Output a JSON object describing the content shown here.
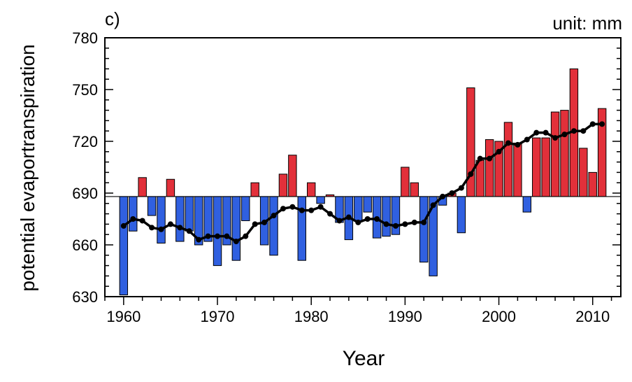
{
  "panel_label": "c)",
  "unit_label": "unit: mm",
  "colors": {
    "positive": "#e2303a",
    "negative": "#3060e0",
    "line": "#000000",
    "axis": "#000000"
  },
  "chart_data": {
    "type": "bar",
    "title": "",
    "xlabel": "Year",
    "ylabel": "potential evaportranspiration",
    "baseline": 688,
    "ylim": [
      630,
      780
    ],
    "xlim": [
      1958,
      2013
    ],
    "yticks": [
      630,
      660,
      690,
      720,
      750,
      780
    ],
    "xticks": [
      1960,
      1970,
      1980,
      1990,
      2000,
      2010
    ],
    "x": [
      1960,
      1961,
      1962,
      1963,
      1964,
      1965,
      1966,
      1967,
      1968,
      1969,
      1970,
      1971,
      1972,
      1973,
      1974,
      1975,
      1976,
      1977,
      1978,
      1979,
      1980,
      1981,
      1982,
      1983,
      1984,
      1985,
      1986,
      1987,
      1988,
      1989,
      1990,
      1991,
      1992,
      1993,
      1994,
      1995,
      1996,
      1997,
      1998,
      1999,
      2000,
      2001,
      2002,
      2003,
      2004,
      2005,
      2006,
      2007,
      2008,
      2009,
      2010,
      2011
    ],
    "series": [
      {
        "type": "bar",
        "values": [
          631,
          668,
          699,
          677,
          661,
          698,
          662,
          668,
          660,
          662,
          648,
          660,
          651,
          674,
          696,
          660,
          654,
          701,
          712,
          651,
          696,
          684,
          689,
          673,
          663,
          674,
          679,
          664,
          665,
          666,
          705,
          696,
          650,
          642,
          683,
          690,
          667,
          751,
          709,
          721,
          720,
          731,
          719,
          679,
          722,
          722,
          737,
          738,
          762,
          716,
          702,
          739
        ]
      },
      {
        "type": "line",
        "values": [
          671,
          675,
          674,
          670,
          669,
          672,
          670,
          668,
          663,
          665,
          665,
          665,
          662,
          665,
          672,
          673,
          677,
          681,
          682,
          680,
          680,
          682,
          678,
          674,
          676,
          673,
          675,
          675,
          672,
          671,
          672,
          673,
          673,
          683,
          688,
          690,
          693,
          701,
          710,
          710,
          714,
          719,
          718,
          721,
          725,
          725,
          722,
          724,
          726,
          726,
          730,
          730
        ]
      }
    ],
    "grid": false,
    "legend": "none"
  }
}
